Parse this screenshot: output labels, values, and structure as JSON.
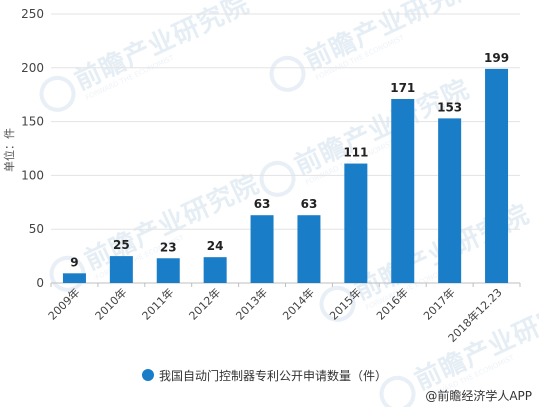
{
  "chart_data": {
    "type": "bar",
    "categories": [
      "2009年",
      "2010年",
      "2011年",
      "2012年",
      "2013年",
      "2014年",
      "2015年",
      "2016年",
      "2017年",
      "2018年12.23"
    ],
    "series": [
      {
        "name": "我国自动门控制器专利公开申请数量（件）",
        "values": [
          9,
          25,
          23,
          24,
          63,
          63,
          111,
          171,
          153,
          199
        ]
      }
    ],
    "ylabel": "单位：件",
    "ylim": [
      0,
      250
    ],
    "yticks": [
      0,
      50,
      100,
      150,
      200,
      250
    ],
    "grid": true,
    "legend_position": "bottom",
    "bar_color": "#1a7dc7",
    "data_labels": true
  },
  "source_credit": "@前瞻经济学人APP",
  "watermark": {
    "text": "前瞻产业研究院",
    "sub": "FORWARD THE ECONOMIST"
  }
}
